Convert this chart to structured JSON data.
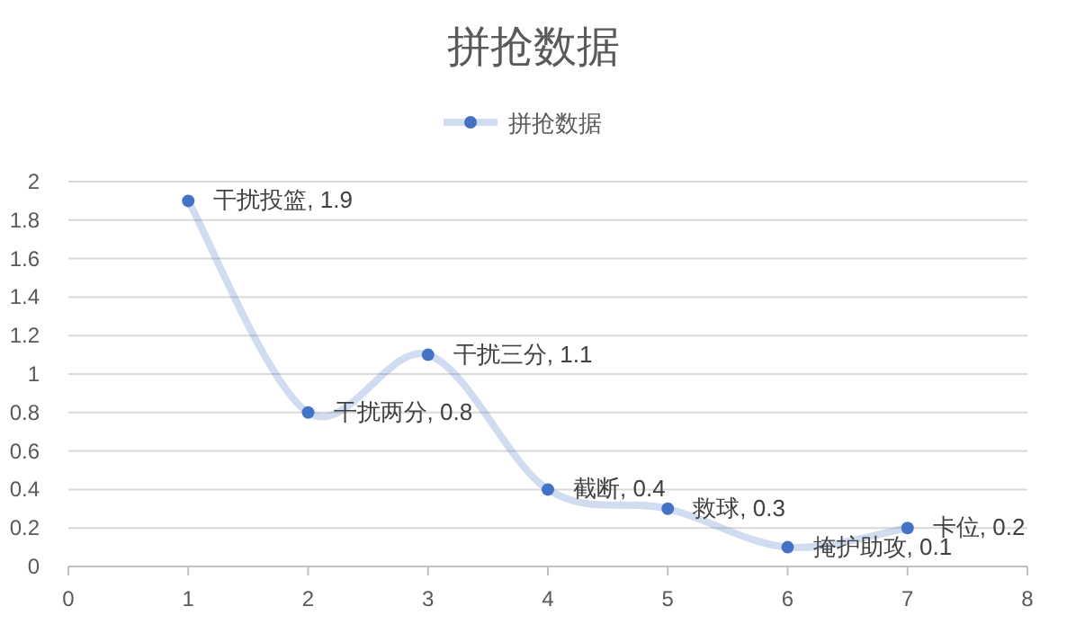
{
  "chart_data": {
    "type": "line",
    "title": "拼抢数据",
    "x": [
      1,
      2,
      3,
      4,
      5,
      6,
      7
    ],
    "series": [
      {
        "name": "拼抢数据",
        "color": "#4472c4",
        "values": [
          1.9,
          0.8,
          1.1,
          0.4,
          0.3,
          0.1,
          0.2
        ],
        "value_labels": [
          "干扰投篮, 1.9",
          "干扰两分, 0.8",
          "干扰三分, 1.1",
          "截断, 0.4",
          "救球, 0.3",
          "掩护助攻, 0.1",
          "卡位, 0.2"
        ]
      }
    ],
    "xlim": [
      0,
      8
    ],
    "xticks": [
      0,
      1,
      2,
      3,
      4,
      5,
      6,
      7,
      8
    ],
    "ylim": [
      0,
      2
    ],
    "yticks": [
      0,
      0.2,
      0.4,
      0.6,
      0.8,
      1,
      1.2,
      1.4,
      1.6,
      1.8,
      2
    ],
    "grid": "y",
    "legend": "top",
    "marker": "circle",
    "line_style": "solid"
  }
}
